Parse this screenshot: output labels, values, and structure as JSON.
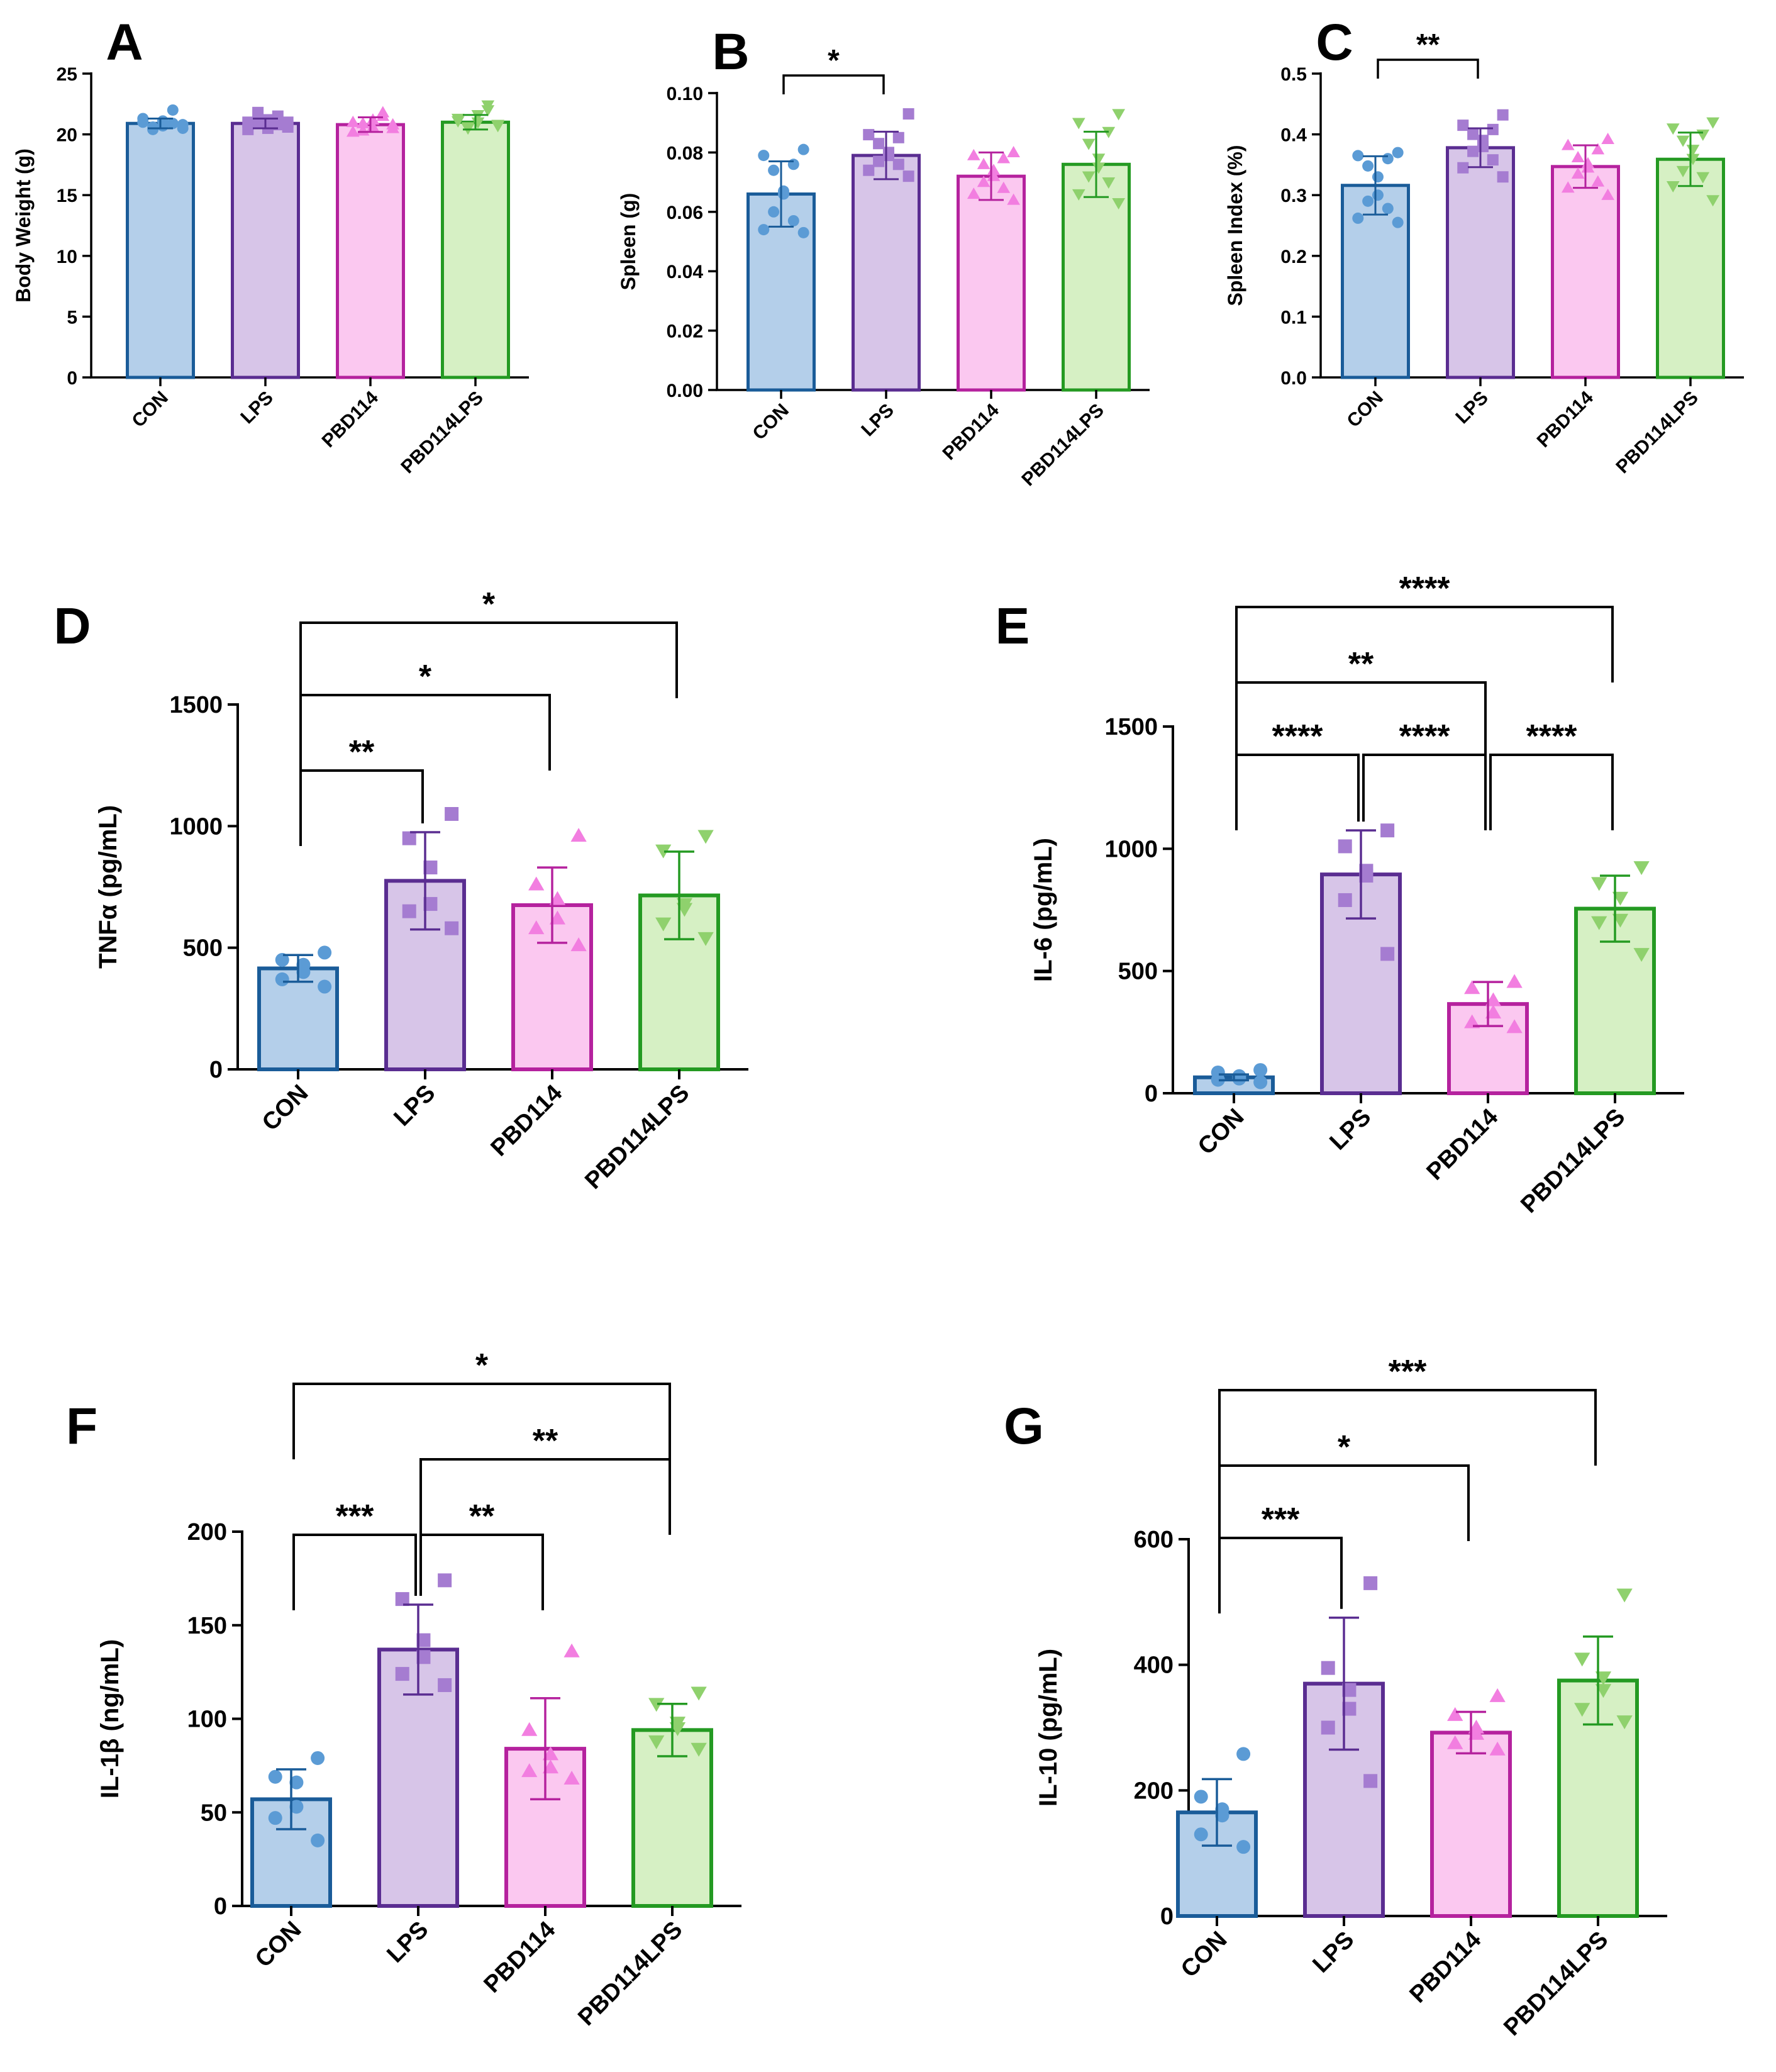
{
  "figure": {
    "groups": [
      "CON",
      "LPS",
      "PBD114",
      "PBD114LPS"
    ],
    "colors": {
      "CON": {
        "fill": "#b4cfea",
        "edge": "#1a5c99",
        "marker": "#5b9bd5"
      },
      "LPS": {
        "fill": "#d7c5e8",
        "edge": "#5a2d91",
        "marker": "#a57cd1"
      },
      "PBD114": {
        "fill": "#fbc8f0",
        "edge": "#b5229e",
        "marker": "#f27ee0"
      },
      "PBD114LPS": {
        "fill": "#d6f0c4",
        "edge": "#249a22",
        "marker": "#8fd16d"
      }
    },
    "markers": {
      "CON": "circle",
      "LPS": "square",
      "PBD114": "triangle-up",
      "PBD114LPS": "triangle-down"
    }
  },
  "chart_data": [
    {
      "panel": "A",
      "type": "bar",
      "ylabel": "Body Weight (g)",
      "categories": [
        "CON",
        "LPS",
        "PBD114",
        "PBD114LPS"
      ],
      "ylim": [
        0,
        25
      ],
      "yticks": [
        0,
        5,
        10,
        15,
        20,
        25
      ],
      "ytick_labels": [
        "0",
        "5",
        "10",
        "15",
        "20",
        "25"
      ],
      "values": [
        20.9,
        20.9,
        20.8,
        21.0
      ],
      "sd": [
        0.4,
        0.4,
        0.6,
        0.6
      ],
      "points": [
        [
          20.8,
          21.0,
          22.0,
          20.6,
          21.1,
          20.7,
          20.4,
          20.9,
          21.3,
          20.5
        ],
        [
          20.6,
          21.0,
          21.5,
          20.9,
          21.2,
          20.5,
          21.8,
          20.8,
          20.4,
          21.0
        ],
        [
          20.5,
          21.0,
          21.8,
          20.3,
          21.2,
          20.6,
          20.9,
          21.5,
          20.2,
          20.8
        ],
        [
          20.7,
          21.3,
          22.4,
          20.6,
          21.0,
          21.6,
          20.5,
          22.0,
          21.1,
          20.8
        ]
      ],
      "significance": []
    },
    {
      "panel": "B",
      "type": "bar",
      "ylabel": "Spleen (g)",
      "categories": [
        "CON",
        "LPS",
        "PBD114",
        "PBD114LPS"
      ],
      "ylim": [
        0,
        0.1
      ],
      "yticks": [
        0,
        0.02,
        0.04,
        0.06,
        0.08,
        0.1
      ],
      "ytick_labels": [
        "0.00",
        "0.02",
        "0.04",
        "0.06",
        "0.08",
        "0.10"
      ],
      "values": [
        0.066,
        0.079,
        0.072,
        0.076
      ],
      "sd": [
        0.011,
        0.008,
        0.008,
        0.011
      ],
      "points": [
        [
          0.081,
          0.079,
          0.076,
          0.074,
          0.067,
          0.066,
          0.06,
          0.057,
          0.054,
          0.053
        ],
        [
          0.093,
          0.086,
          0.085,
          0.083,
          0.08,
          0.079,
          0.077,
          0.076,
          0.074,
          0.072
        ],
        [
          0.08,
          0.079,
          0.078,
          0.076,
          0.074,
          0.072,
          0.07,
          0.068,
          0.066,
          0.064
        ],
        [
          0.093,
          0.09,
          0.087,
          0.083,
          0.078,
          0.075,
          0.072,
          0.07,
          0.066,
          0.063
        ]
      ],
      "significance": [
        {
          "from": "CON",
          "to": "LPS",
          "label": "*"
        }
      ]
    },
    {
      "panel": "C",
      "type": "bar",
      "ylabel": "Spleen Index (%)",
      "categories": [
        "CON",
        "LPS",
        "PBD114",
        "PBD114LPS"
      ],
      "ylim": [
        0,
        0.5
      ],
      "yticks": [
        0,
        0.1,
        0.2,
        0.3,
        0.4,
        0.5
      ],
      "ytick_labels": [
        "0.0",
        "0.1",
        "0.2",
        "0.3",
        "0.4",
        "0.5"
      ],
      "values": [
        0.316,
        0.378,
        0.347,
        0.359
      ],
      "sd": [
        0.048,
        0.032,
        0.035,
        0.044
      ],
      "points": [
        [
          0.37,
          0.365,
          0.36,
          0.348,
          0.33,
          0.3,
          0.29,
          0.278,
          0.262,
          0.255
        ],
        [
          0.432,
          0.415,
          0.408,
          0.4,
          0.39,
          0.38,
          0.372,
          0.358,
          0.345,
          0.33
        ],
        [
          0.392,
          0.382,
          0.375,
          0.362,
          0.352,
          0.345,
          0.335,
          0.322,
          0.312,
          0.3
        ],
        [
          0.42,
          0.41,
          0.4,
          0.39,
          0.375,
          0.36,
          0.34,
          0.33,
          0.315,
          0.292
        ]
      ],
      "significance": [
        {
          "from": "CON",
          "to": "LPS",
          "label": "**"
        }
      ]
    },
    {
      "panel": "D",
      "type": "bar",
      "ylabel": "TNFα (pg/mL)",
      "categories": [
        "CON",
        "LPS",
        "PBD114",
        "PBD114LPS"
      ],
      "ylim": [
        0,
        1500
      ],
      "yticks": [
        0,
        500,
        1000,
        1500
      ],
      "ytick_labels": [
        "0",
        "500",
        "1000",
        "1500"
      ],
      "values": [
        415,
        775,
        675,
        715
      ],
      "sd": [
        55,
        200,
        155,
        180
      ],
      "points": [
        [
          480,
          450,
          430,
          400,
          370,
          340
        ],
        [
          1050,
          950,
          830,
          680,
          650,
          580
        ],
        [
          960,
          760,
          700,
          620,
          580,
          510
        ],
        [
          960,
          900,
          680,
          660,
          600,
          540
        ]
      ],
      "significance": [
        {
          "from": "CON",
          "to": "LPS",
          "label": "**"
        },
        {
          "from": "CON",
          "to": "PBD114",
          "label": "*"
        },
        {
          "from": "CON",
          "to": "PBD114LPS",
          "label": "*"
        }
      ]
    },
    {
      "panel": "E",
      "type": "bar",
      "ylabel": "IL-6 (pg/mL)",
      "categories": [
        "CON",
        "LPS",
        "PBD114",
        "PBD114LPS"
      ],
      "ylim": [
        0,
        1500
      ],
      "yticks": [
        0,
        500,
        1000,
        1500
      ],
      "ytick_labels": [
        "0",
        "500",
        "1000",
        "1500"
      ],
      "values": [
        65,
        895,
        365,
        755
      ],
      "sd": [
        12,
        180,
        90,
        135
      ],
      "points": [
        [
          95,
          85,
          70,
          60,
          55,
          45
        ],
        [
          1075,
          1010,
          910,
          890,
          790,
          570
        ],
        [
          455,
          430,
          380,
          330,
          290,
          270
        ],
        [
          925,
          860,
          800,
          710,
          700,
          570
        ]
      ],
      "significance": [
        {
          "from": "CON",
          "to": "LPS",
          "label": "****"
        },
        {
          "from": "LPS",
          "to": "PBD114",
          "label": "****"
        },
        {
          "from": "PBD114",
          "to": "PBD114LPS",
          "label": "****"
        },
        {
          "from": "CON",
          "to": "PBD114",
          "label": "**"
        },
        {
          "from": "CON",
          "to": "PBD114LPS",
          "label": "****"
        }
      ]
    },
    {
      "panel": "F",
      "type": "bar",
      "ylabel": "IL-1β (ng/mL)",
      "categories": [
        "CON",
        "LPS",
        "PBD114",
        "PBD114LPS"
      ],
      "ylim": [
        0,
        200
      ],
      "yticks": [
        0,
        50,
        100,
        150,
        200
      ],
      "ytick_labels": [
        "0",
        "50",
        "100",
        "150",
        "200"
      ],
      "values": [
        57,
        137,
        84,
        94
      ],
      "sd": [
        16,
        24,
        27,
        14
      ],
      "points": [
        [
          79,
          69,
          66,
          53,
          47,
          35
        ],
        [
          174,
          164,
          142,
          133,
          124,
          118
        ],
        [
          136,
          94,
          81,
          74,
          72,
          68
        ],
        [
          114,
          108,
          98,
          95,
          88,
          84
        ]
      ],
      "significance": [
        {
          "from": "CON",
          "to": "LPS",
          "label": "***"
        },
        {
          "from": "LPS",
          "to": "PBD114",
          "label": "**"
        },
        {
          "from": "LPS",
          "to": "PBD114LPS",
          "label": "**"
        },
        {
          "from": "CON",
          "to": "PBD114LPS",
          "label": "*"
        }
      ]
    },
    {
      "panel": "G",
      "type": "bar",
      "ylabel": "IL-10 (pg/mL)",
      "categories": [
        "CON",
        "LPS",
        "PBD114",
        "PBD114LPS"
      ],
      "ylim": [
        0,
        600
      ],
      "yticks": [
        0,
        200,
        400,
        600
      ],
      "ytick_labels": [
        "0",
        "200",
        "400",
        "600"
      ],
      "values": [
        165,
        370,
        292,
        375
      ],
      "sd": [
        53,
        105,
        33,
        70
      ],
      "points": [
        [
          258,
          190,
          170,
          160,
          130,
          110
        ],
        [
          530,
          395,
          360,
          330,
          300,
          215
        ],
        [
          350,
          320,
          300,
          290,
          275,
          265
        ],
        [
          512,
          410,
          380,
          360,
          330,
          310
        ]
      ],
      "significance": [
        {
          "from": "CON",
          "to": "LPS",
          "label": "***"
        },
        {
          "from": "CON",
          "to": "PBD114",
          "label": "*"
        },
        {
          "from": "CON",
          "to": "PBD114LPS",
          "label": "***"
        }
      ]
    }
  ]
}
